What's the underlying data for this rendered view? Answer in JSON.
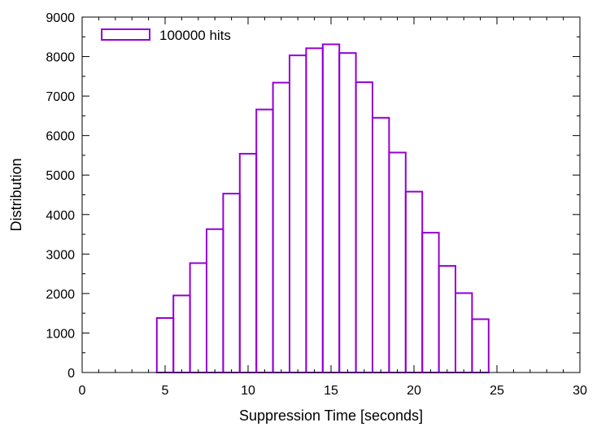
{
  "chart_data": {
    "type": "bar",
    "xlabel": "Suppression Time [seconds]",
    "ylabel": "Distribution",
    "xlim": [
      0,
      30
    ],
    "ylim": [
      0,
      9000
    ],
    "xticks": [
      "0",
      "5",
      "10",
      "15",
      "20",
      "25",
      "30"
    ],
    "yticks": [
      "0",
      "1000",
      "2000",
      "3000",
      "4000",
      "5000",
      "6000",
      "7000",
      "8000",
      "9000"
    ],
    "grid": false,
    "legend_position": "top-left",
    "series": [
      {
        "name": "100000 hits",
        "color": "#9400d3",
        "bin_width": 1,
        "x": [
          5,
          6,
          7,
          8,
          9,
          10,
          11,
          12,
          13,
          14,
          15,
          16,
          17,
          18,
          19,
          20,
          21,
          22,
          23,
          24
        ],
        "values": [
          1380,
          1950,
          2770,
          3630,
          4530,
          5540,
          6660,
          7340,
          8030,
          8210,
          8310,
          8090,
          7350,
          6450,
          5570,
          4580,
          3540,
          2700,
          2010,
          1350
        ]
      }
    ]
  }
}
